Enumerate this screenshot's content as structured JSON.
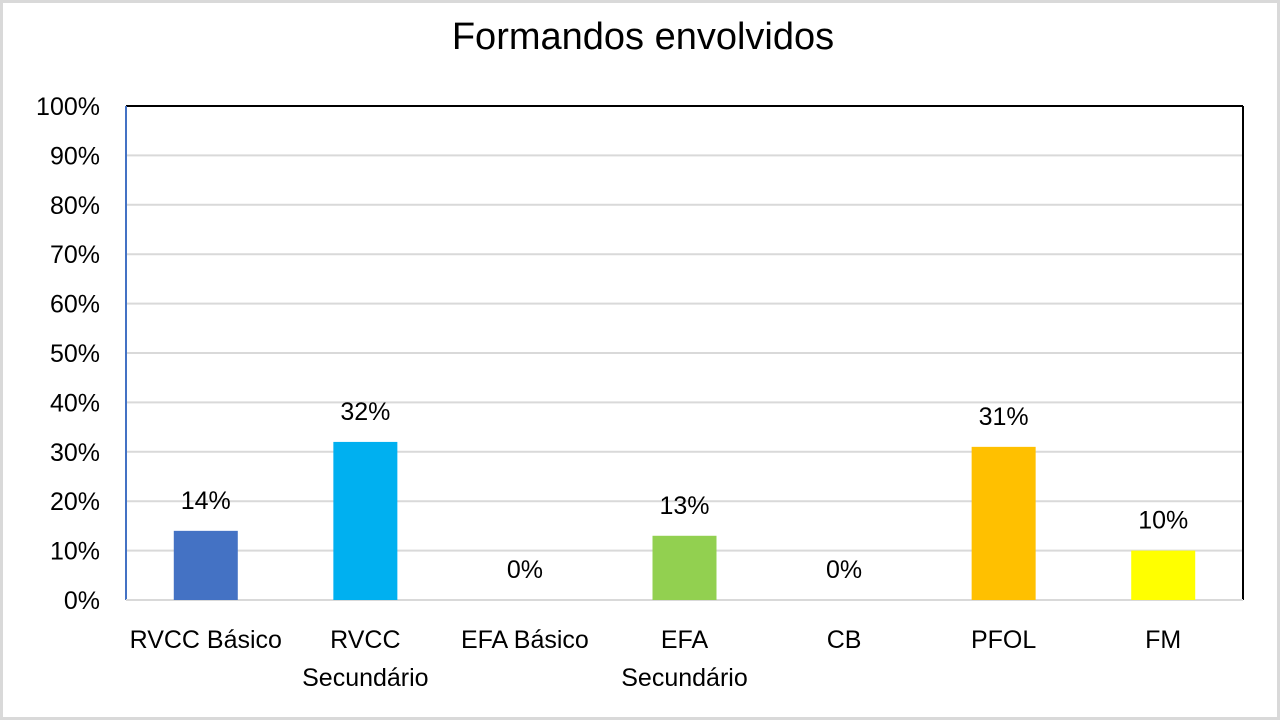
{
  "chart_data": {
    "type": "bar",
    "title": "Formandos envolvidos",
    "xlabel": "",
    "ylabel": "",
    "categories": [
      "RVCC Básico",
      "RVCC Secundário",
      "EFA Básico",
      "EFA Secundário",
      "CB",
      "PFOL",
      "FM"
    ],
    "values": [
      14,
      32,
      0,
      13,
      0,
      31,
      10
    ],
    "data_labels": [
      "14%",
      "32%",
      "0%",
      "13%",
      "0%",
      "31%",
      "10%"
    ],
    "colors": [
      "#4472C4",
      "#00B0F0",
      "#A5A5A5",
      "#92D050",
      "#7F7F7F",
      "#FFC000",
      "#FFFF00"
    ],
    "ylim": [
      0,
      100
    ],
    "yticks": [
      0,
      10,
      20,
      30,
      40,
      50,
      60,
      70,
      80,
      90,
      100
    ],
    "ytick_labels": [
      "0%",
      "10%",
      "20%",
      "30%",
      "40%",
      "50%",
      "60%",
      "70%",
      "80%",
      "90%",
      "100%"
    ],
    "grid": true,
    "legend": "none"
  }
}
